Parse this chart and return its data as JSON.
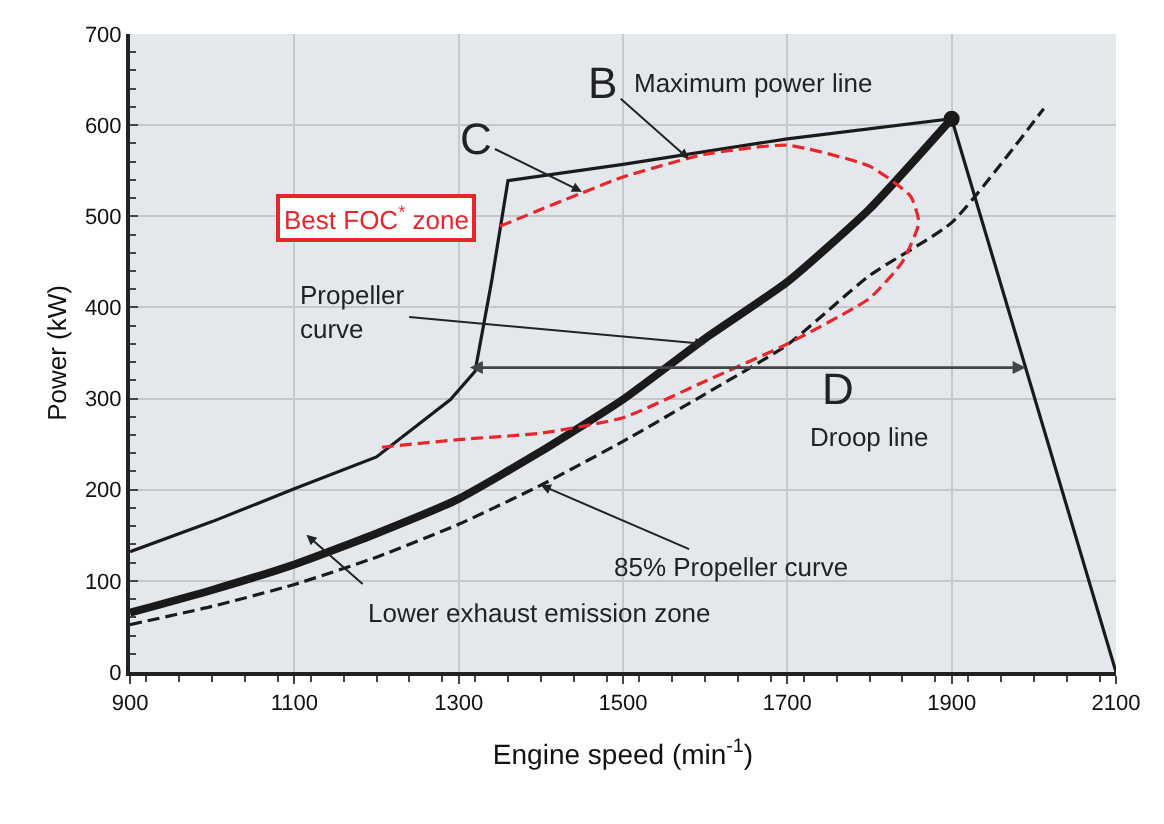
{
  "chart_data": {
    "type": "line",
    "xlabel": "Engine speed (min$^{-1}$)",
    "ylabel": "Power (kW)",
    "xlim": [
      900,
      2100
    ],
    "xticks": [
      900,
      1100,
      1300,
      1500,
      1700,
      1900,
      2100
    ],
    "ylim": [
      0,
      700
    ],
    "yticks": [
      0,
      100,
      200,
      300,
      400,
      500,
      600,
      700
    ],
    "grid": true,
    "series": [
      {
        "color": "#1a1a1a",
        "line_style": "solid",
        "x": [
          900,
          1000,
          1100,
          1200,
          1290,
          1320,
          1340,
          1360,
          1500,
          1700,
          1900,
          2100
        ],
        "values": [
          132,
          165,
          201,
          236,
          299,
          330,
          428,
          539,
          557,
          585,
          607,
          0
        ]
      },
      {
        "color": "#1a1a1a",
        "line_style": "solid",
        "x": [
          900,
          1000,
          1100,
          1200,
          1300,
          1400,
          1500,
          1600,
          1700,
          1800,
          1900
        ],
        "values": [
          65,
          90,
          118,
          152,
          190,
          242,
          299,
          366,
          428,
          508,
          607
        ]
      },
      {
        "color": "#1a1a1a",
        "line_style": "dashed",
        "x": [
          900,
          1000,
          1100,
          1200,
          1300,
          1400,
          1500,
          1600,
          1700,
          1800,
          1900,
          2012
        ],
        "values": [
          52,
          72,
          96,
          126,
          162,
          205,
          253,
          305,
          359,
          435,
          493,
          618
        ]
      },
      {
        "color": "#e8262c",
        "line_style": "dashed",
        "x": [
          1350,
          1500,
          1600,
          1700,
          1800,
          1850,
          1860,
          1840,
          1800,
          1700,
          1600,
          1500,
          1400,
          1300,
          1200
        ],
        "values": [
          489,
          543,
          568,
          578,
          555,
          522,
          493,
          450,
          410,
          360,
          319,
          279,
          262,
          255,
          246
        ]
      },
      {
        "type": "scatter",
        "marker": "circle",
        "color": "#1a1a1a",
        "x": [
          1900
        ],
        "values": [
          607
        ]
      }
    ],
    "annotations": [
      {
        "text": "B",
        "x": 1580,
        "y": 563
      },
      "Maximum power line",
      {
        "text": "C",
        "x": 1450,
        "y": 527
      },
      {
        "text": "Best FOC$^{*}$ zone",
        "x": 1350,
        "y": 489
      },
      {
        "text": "Propeller\ncurve",
        "x": 1600,
        "y": 360
      },
      "D",
      "Droop line",
      {
        "text": "85% Propeller curve",
        "x": 1400,
        "y": 205
      },
      "Lower exhaust emission zone"
    ]
  }
}
